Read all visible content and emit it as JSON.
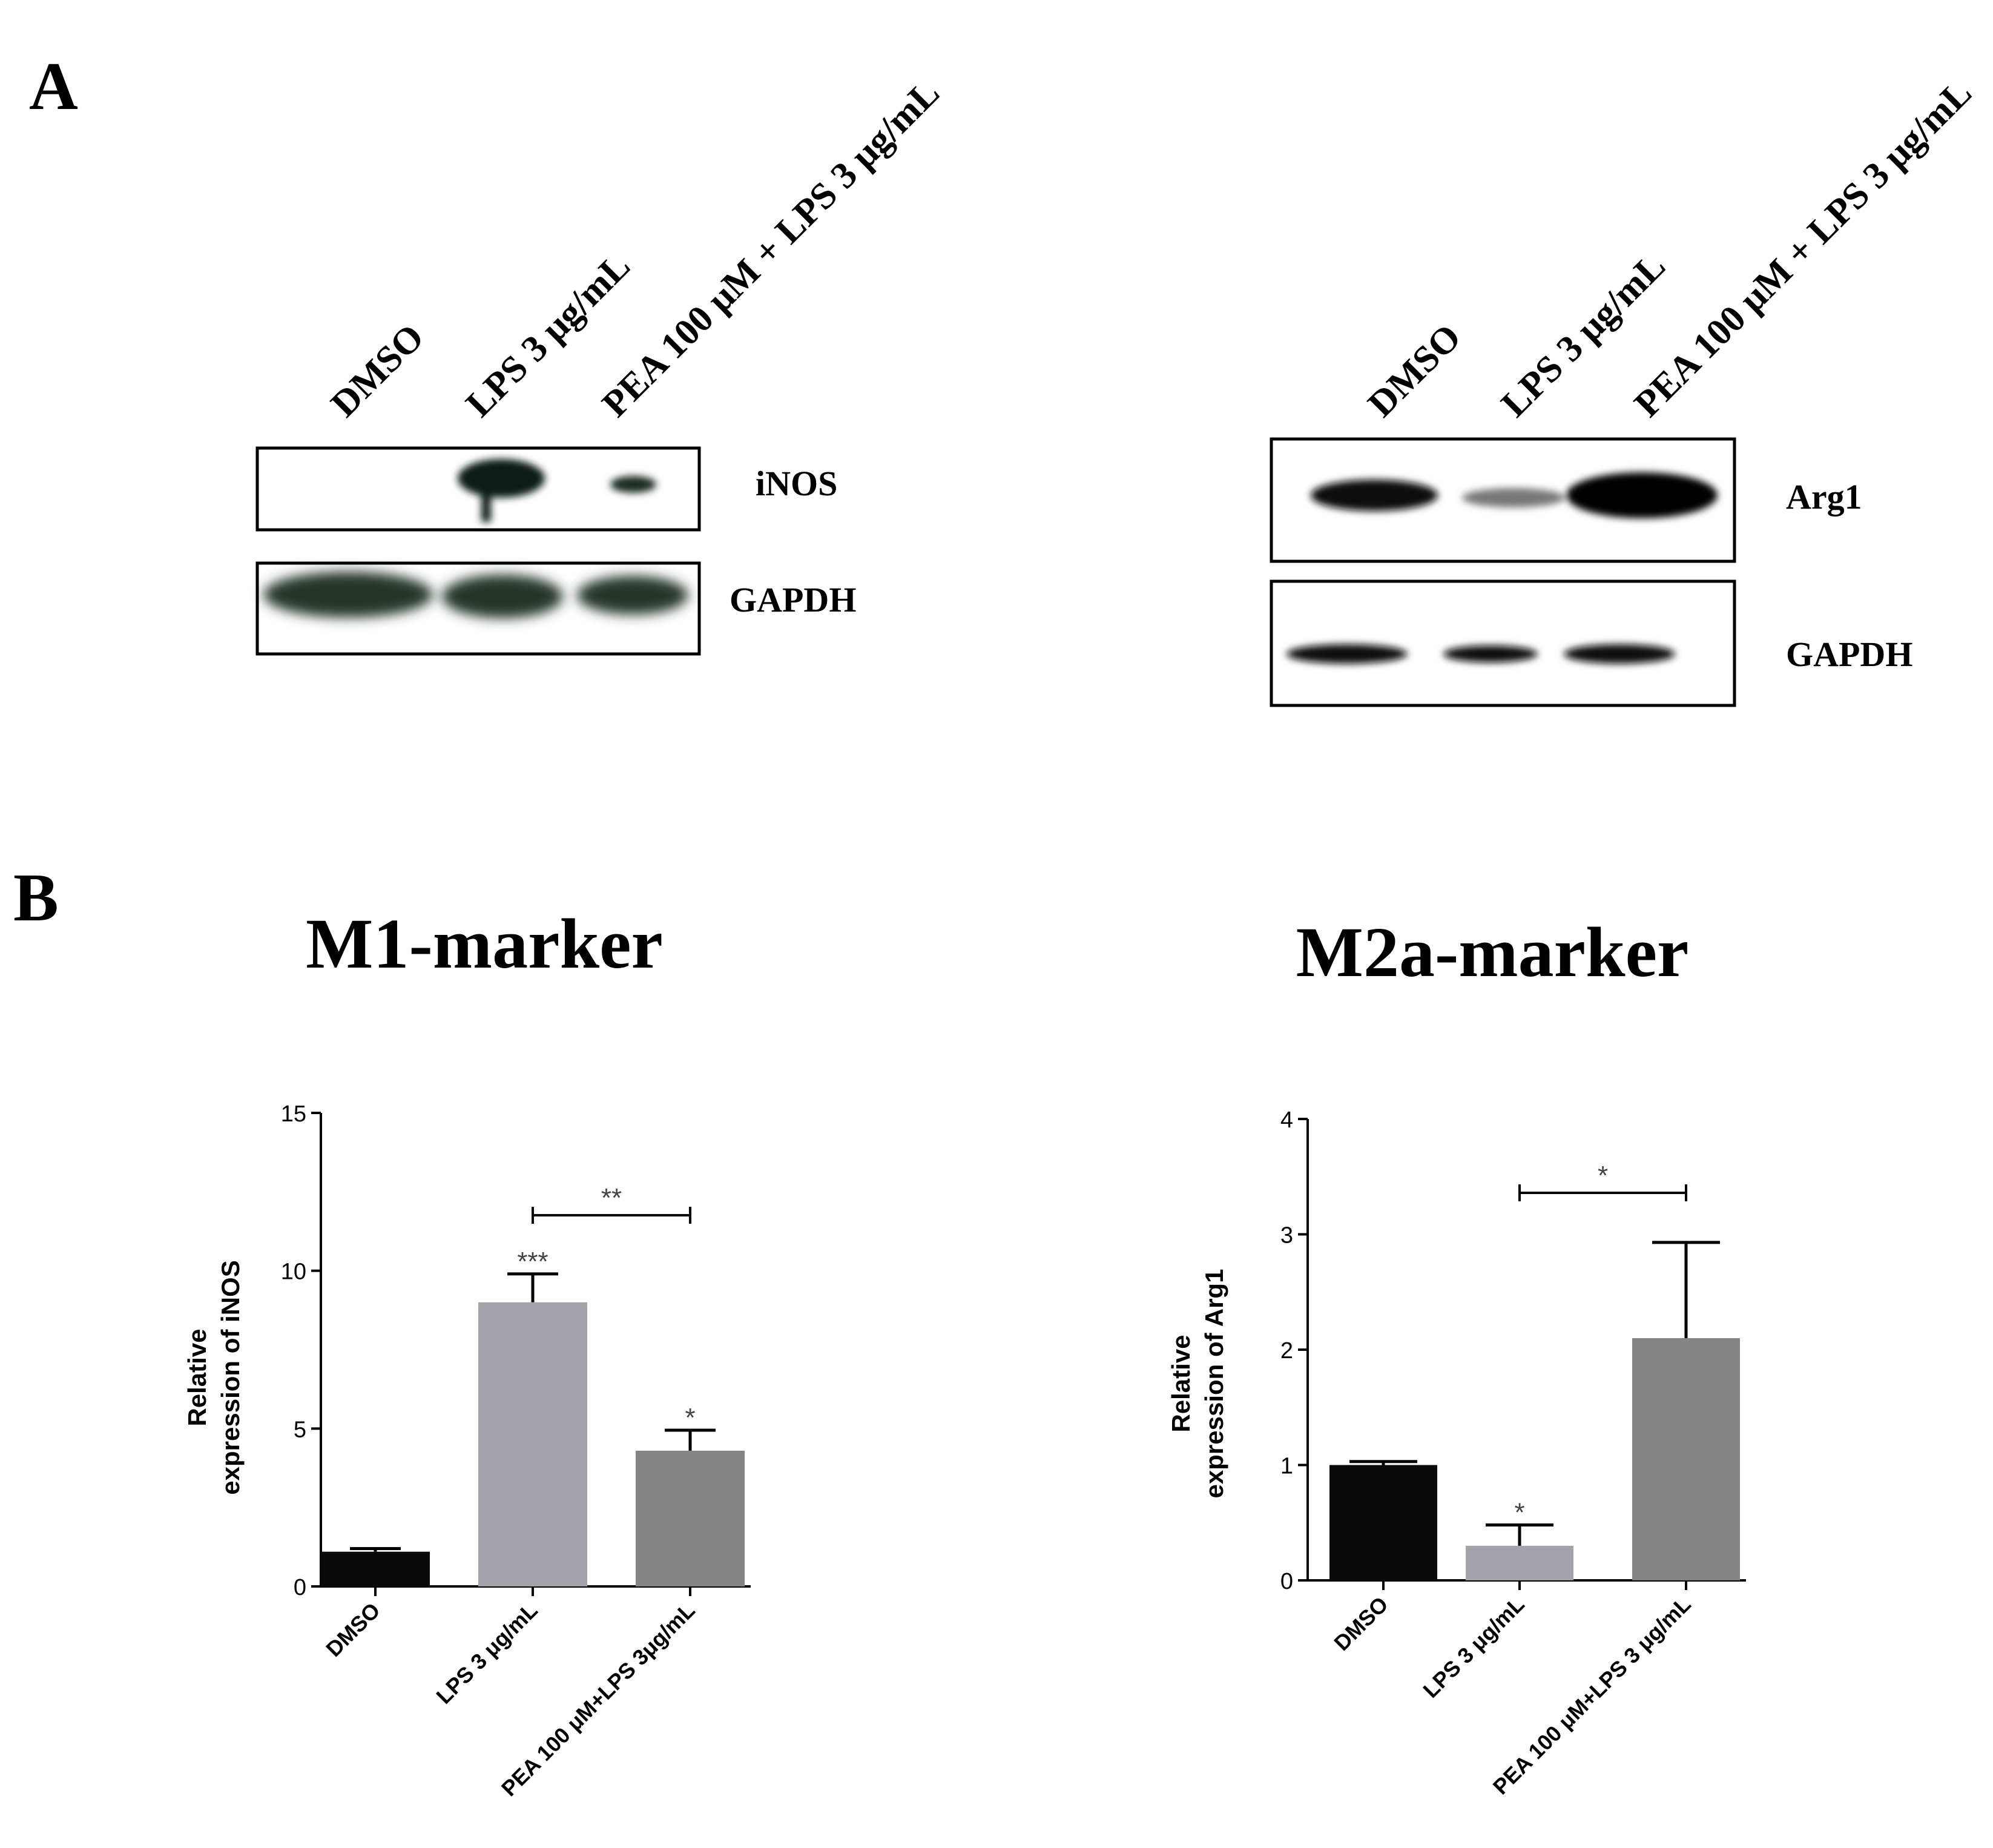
{
  "panel_labels": {
    "a": "A",
    "b": "B"
  },
  "blots": [
    {
      "lanes": [
        "DMSO",
        "LPS 3 μg/mL",
        "PEA 100 μM + LPS 3 μg/mL"
      ],
      "bands": [
        "iNOS",
        "GAPDH"
      ]
    },
    {
      "lanes": [
        "DMSO",
        "LPS 3 μg/mL",
        "PEA 100 μM + LPS 3 μg/mL"
      ],
      "bands": [
        "Arg1",
        "GAPDH"
      ]
    }
  ],
  "chart_data": [
    {
      "type": "bar",
      "title": "M1-marker",
      "ylabel_lines": [
        "Relative",
        "expression of iNOS"
      ],
      "categories": [
        "DMSO",
        "LPS 3 μg/mL",
        "PEA 100 μM+LPS 3μg/mL"
      ],
      "values": [
        1.1,
        9.0,
        4.3
      ],
      "errors": [
        0.1,
        0.9,
        0.65
      ],
      "ylim": [
        0,
        15
      ],
      "yticks": [
        0,
        5,
        10,
        15
      ],
      "bar_colors": [
        "#0a0a0a",
        "#a4a3aa",
        "#858585"
      ],
      "significance": [
        "",
        "***",
        "*"
      ],
      "comparison": {
        "from": 1,
        "to": 2,
        "label": "**"
      }
    },
    {
      "type": "bar",
      "title": "M2a-marker",
      "ylabel_lines": [
        "Relative",
        "expression of Arg1"
      ],
      "categories": [
        "DMSO",
        "LPS 3 μg/mL",
        "PEA 100 μM+LPS 3 μg/mL"
      ],
      "values": [
        1.0,
        0.3,
        2.1
      ],
      "errors": [
        0.03,
        0.18,
        0.83
      ],
      "ylim": [
        0,
        4
      ],
      "yticks": [
        0,
        1,
        2,
        3,
        4
      ],
      "bar_colors": [
        "#0a0a0a",
        "#a4a3aa",
        "#858585"
      ],
      "significance": [
        "",
        "*",
        ""
      ],
      "comparison": {
        "from": 1,
        "to": 2,
        "label": "*"
      }
    }
  ]
}
